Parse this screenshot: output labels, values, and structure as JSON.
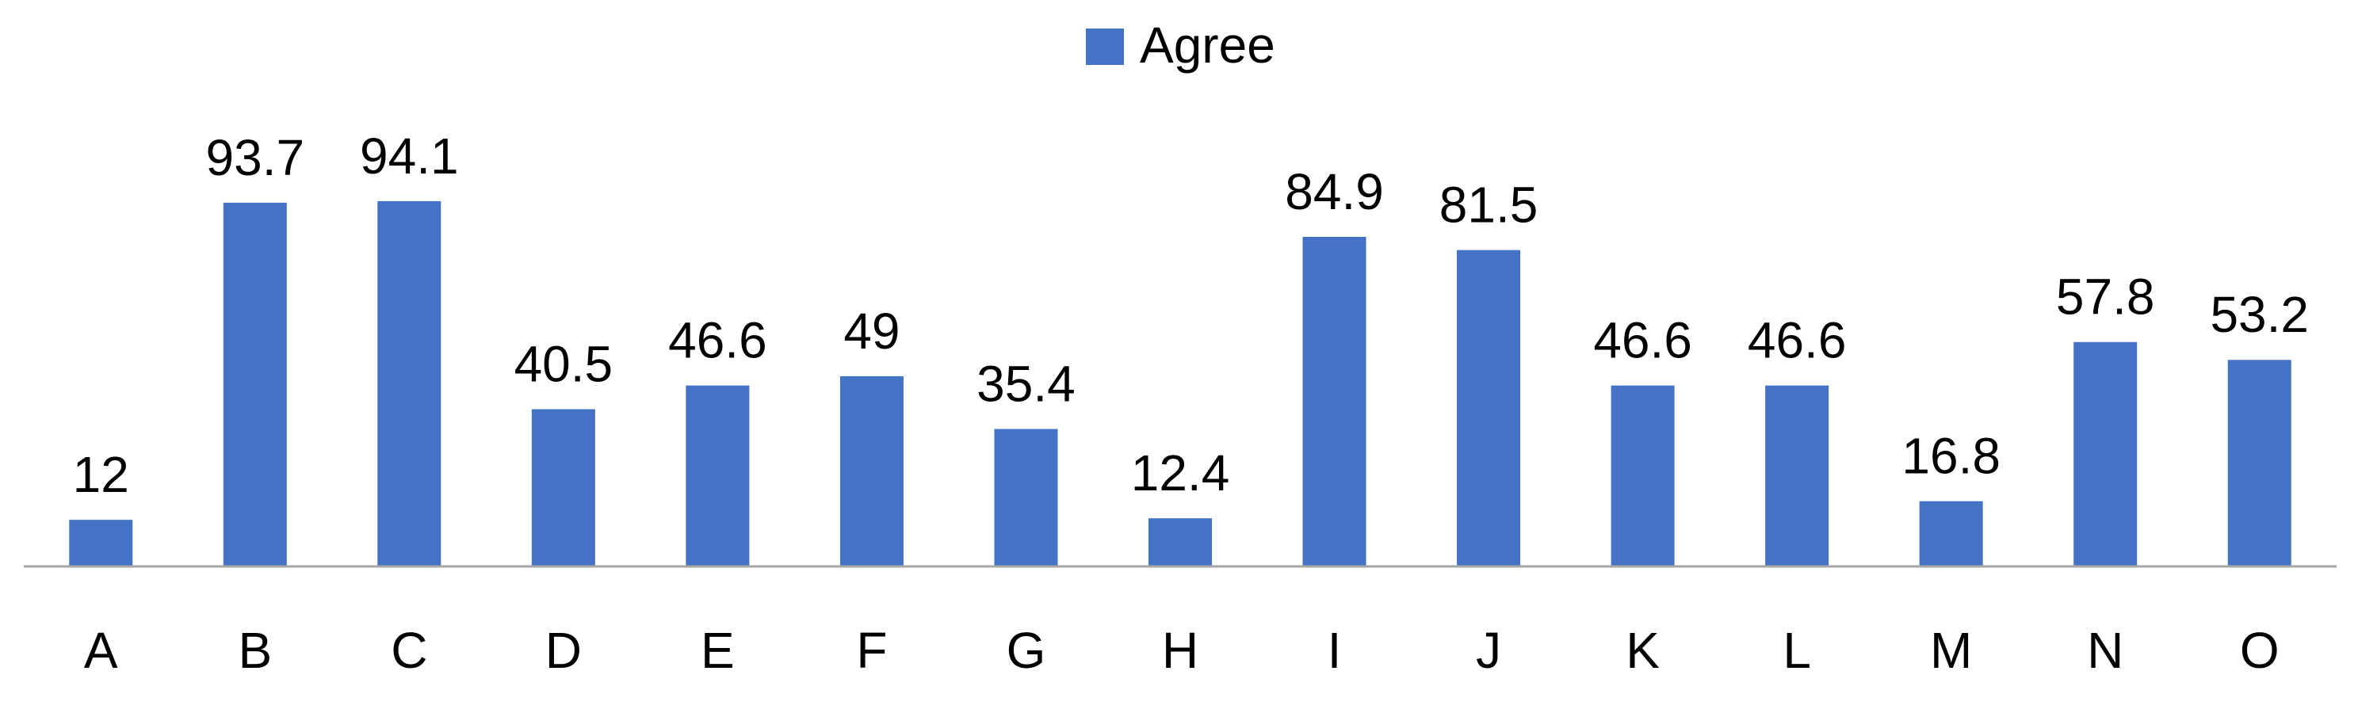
{
  "chart_data": {
    "type": "bar",
    "categories": [
      "A",
      "B",
      "C",
      "D",
      "E",
      "F",
      "G",
      "H",
      "I",
      "J",
      "K",
      "L",
      "M",
      "N",
      "O"
    ],
    "series": [
      {
        "name": "Agree",
        "color": "#4472c4",
        "values": [
          12,
          93.7,
          94.1,
          40.5,
          46.6,
          49,
          35.4,
          12.4,
          84.9,
          81.5,
          46.6,
          46.6,
          16.8,
          57.8,
          53.2
        ]
      }
    ],
    "ylim": [
      0,
      100
    ],
    "legend": "top"
  }
}
